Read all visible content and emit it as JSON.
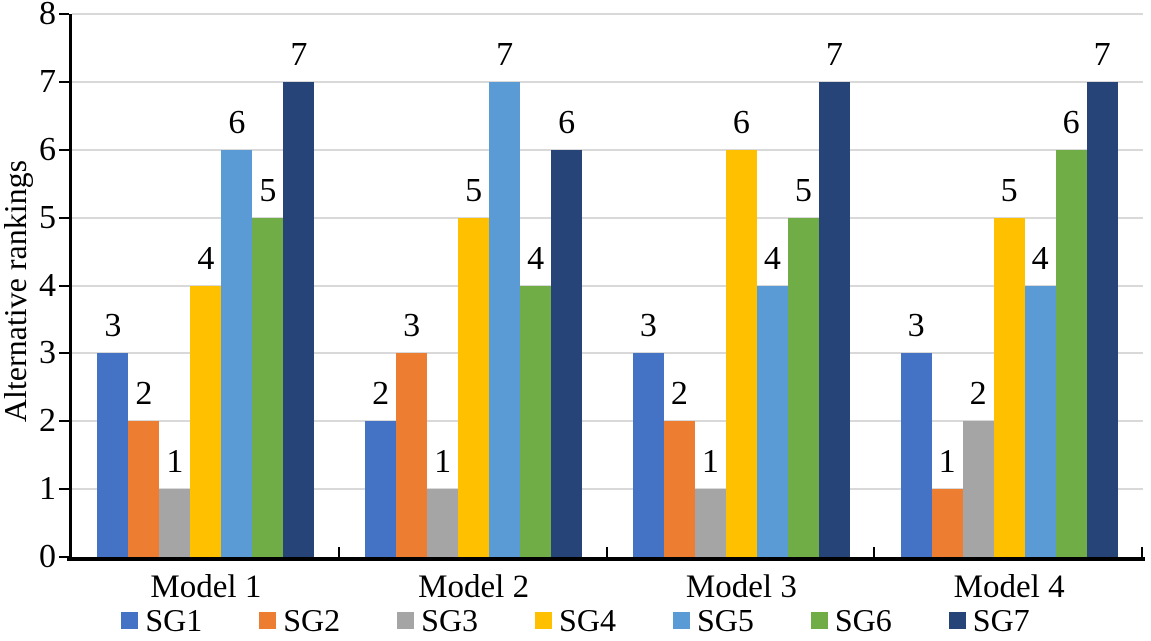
{
  "chart_data": {
    "type": "bar",
    "title": "",
    "ylabel": "Alternative rankings",
    "xlabel": "",
    "ylim": [
      0,
      8
    ],
    "yticks": [
      0,
      1,
      2,
      3,
      4,
      5,
      6,
      7,
      8
    ],
    "grid": true,
    "data_labels": true,
    "legend_position": "bottom",
    "categories": [
      "Model 1",
      "Model 2",
      "Model 3",
      "Model 4"
    ],
    "series": [
      {
        "name": "SG1",
        "color": "#4472C4",
        "values": [
          3,
          2,
          3,
          3
        ]
      },
      {
        "name": "SG2",
        "color": "#ED7D31",
        "values": [
          2,
          3,
          2,
          1
        ]
      },
      {
        "name": "SG3",
        "color": "#A5A5A5",
        "values": [
          1,
          1,
          1,
          2
        ]
      },
      {
        "name": "SG4",
        "color": "#FFC000",
        "values": [
          4,
          5,
          6,
          5
        ]
      },
      {
        "name": "SG5",
        "color": "#5B9BD5",
        "values": [
          6,
          7,
          4,
          4
        ]
      },
      {
        "name": "SG6",
        "color": "#70AD47",
        "values": [
          5,
          4,
          5,
          6
        ]
      },
      {
        "name": "SG7",
        "color": "#264478",
        "values": [
          7,
          6,
          7,
          7
        ]
      }
    ],
    "colors": {
      "gridline": "#D9D9D9",
      "axis": "#000000",
      "background": "#FFFFFF"
    }
  }
}
